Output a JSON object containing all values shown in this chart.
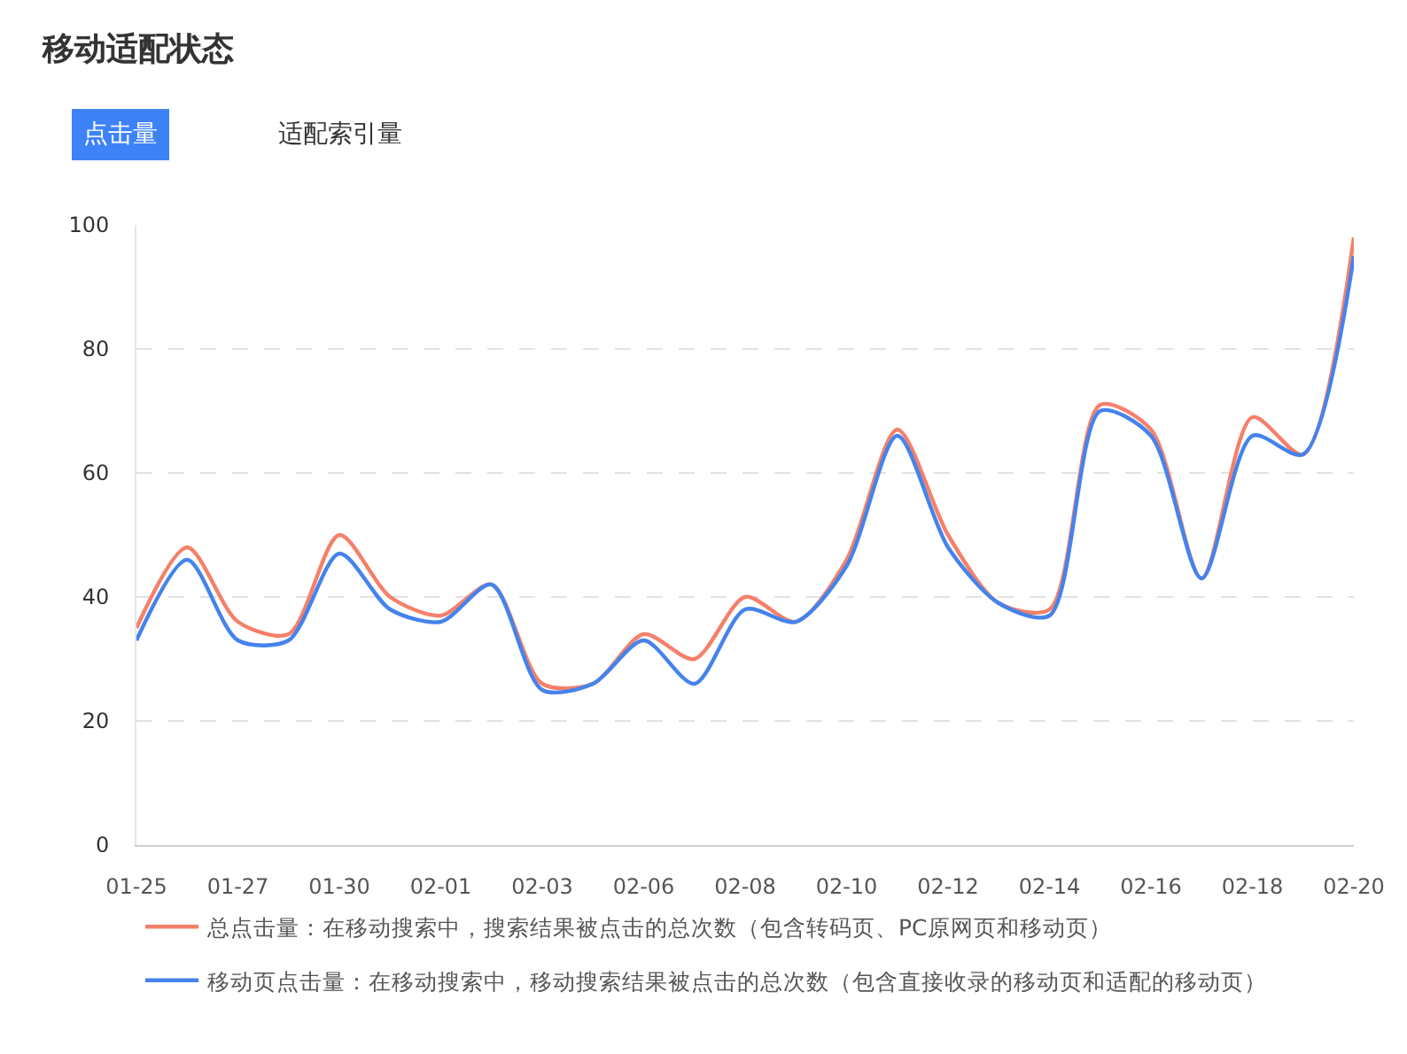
{
  "chart_data": {
    "type": "line",
    "title": "移动适配状态",
    "annotations": [
      "点击量",
      "适配索引量"
    ],
    "categories": [
      "01-25",
      null,
      "01-27",
      null,
      "01-30",
      null,
      "02-01",
      null,
      "02-03",
      null,
      "02-06",
      null,
      "02-08",
      null,
      "02-10",
      null,
      "02-12",
      null,
      "02-14",
      null,
      "02-16",
      null,
      "02-18",
      null,
      "02-20"
    ],
    "series": [
      {
        "name": "总点击量：在移动搜索中，搜索结果被点击的总次数（包含转码页、PC原网页和移动页）",
        "color": "#f5806a",
        "values": [
          35,
          48,
          36,
          34,
          50,
          40,
          37,
          42,
          26,
          26,
          34,
          30,
          40,
          36,
          46,
          67,
          50,
          39,
          38,
          71,
          67,
          43,
          69,
          63,
          98
        ]
      },
      {
        "name": "移动页点击量：在移动搜索中，移动搜索结果被点击的总次数（包含直接收录的移动页和适配的移动页）",
        "color": "#4583ec",
        "values": [
          33,
          46,
          33,
          33,
          47,
          38,
          36,
          42,
          25,
          26,
          33,
          26,
          38,
          36,
          45,
          66,
          48,
          39,
          37,
          70,
          66,
          43,
          66,
          63,
          95
        ]
      }
    ],
    "ylim": [
      0,
      100
    ],
    "yticks": [
      0,
      20,
      40,
      60,
      80,
      100
    ],
    "grid": "y",
    "legend": "bottom",
    "marker": "none",
    "line_style": "solid"
  }
}
